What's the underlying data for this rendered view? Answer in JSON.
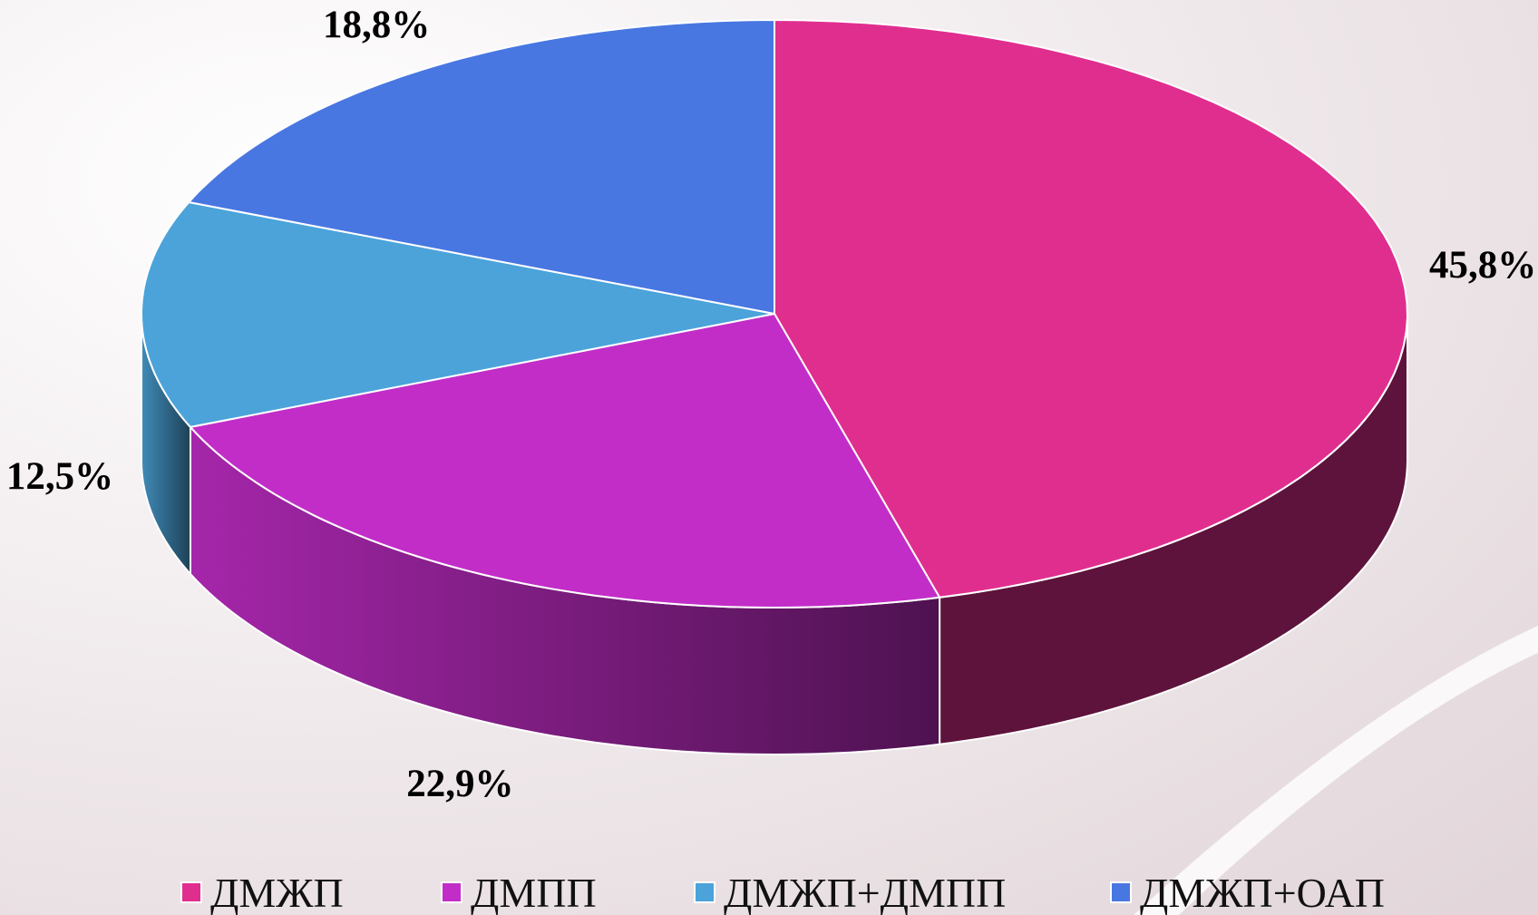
{
  "chart_data": {
    "type": "pie3d",
    "categories": [
      "ДМЖП",
      "ДМПП",
      "ДМЖП+ДМПП",
      "ДМЖП+ОАП"
    ],
    "values": [
      45.8,
      22.9,
      12.5,
      18.8
    ],
    "value_labels": [
      "45,8%",
      "22,9%",
      "12,5%",
      "18,8%"
    ],
    "colors": [
      "#e02e8f",
      "#c22dc8",
      "#4ba3d9",
      "#4877e2"
    ],
    "legend": "bottom"
  }
}
